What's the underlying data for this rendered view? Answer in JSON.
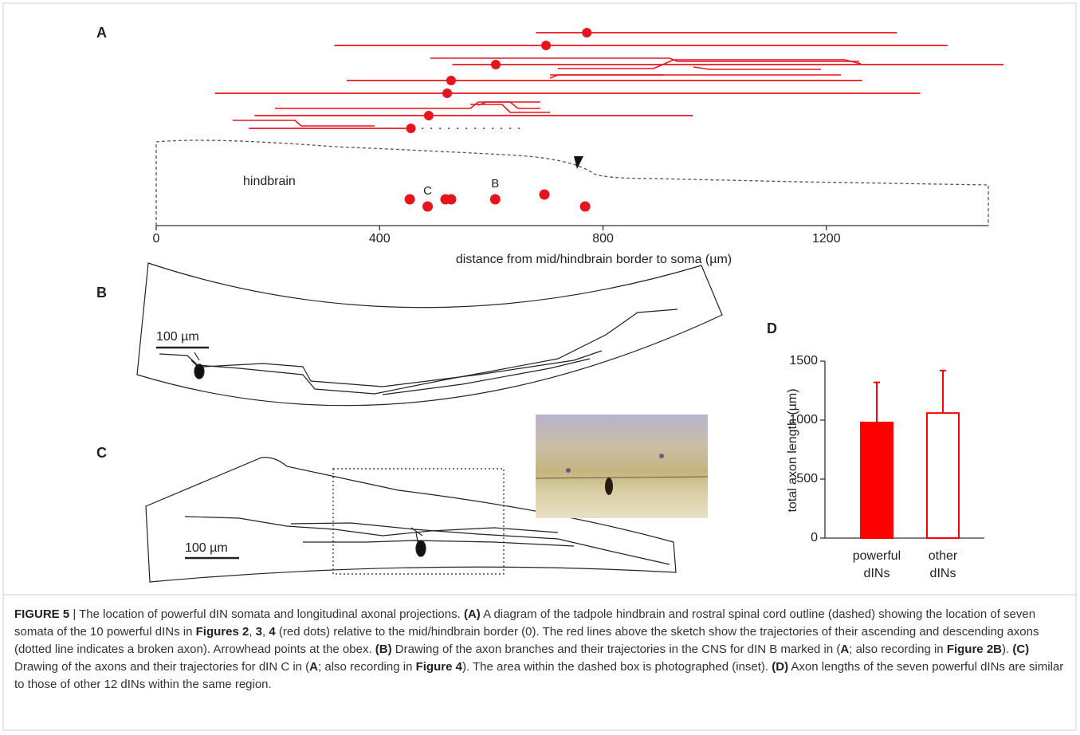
{
  "panels": {
    "A": {
      "label": "A",
      "region_label": "hindbrain",
      "x_label": "distance from mid/hindbrain border to soma (µm)",
      "xlim": [
        0,
        1490
      ],
      "xticks": [
        0,
        400,
        800,
        1200
      ],
      "somata": {
        "x": [
          454,
          486,
          518,
          528,
          607,
          695,
          768
        ],
        "labels": [
          null,
          "C",
          null,
          null,
          "B",
          null,
          null
        ]
      },
      "axons": [
        {
          "soma": 771,
          "start": 680,
          "end": 1326
        },
        {
          "soma": 698,
          "start": 319,
          "end": 1417
        },
        {
          "soma": 608,
          "start": 530,
          "end": 1517
        },
        {
          "soma": 528,
          "start": 341,
          "end": 1264
        },
        {
          "soma": 521,
          "start": 105,
          "end": 1368
        },
        {
          "soma": 488,
          "start": 176,
          "end": 961
        },
        {
          "soma": 456,
          "start": 166,
          "end": 651,
          "broken_from": 444
        }
      ],
      "color": "#e8141c"
    },
    "B": {
      "label": "B",
      "scale_label": "100 µm"
    },
    "C": {
      "label": "C",
      "scale_label": "100 µm"
    },
    "D": {
      "label": "D",
      "type": "bar",
      "y_label": "total axon length (µm)",
      "categories": [
        [
          "powerful",
          "dINs"
        ],
        [
          "other",
          "dINs"
        ]
      ],
      "values": [
        980,
        1060
      ],
      "errors": [
        340,
        360
      ],
      "fills": [
        "#ff0000",
        "#ffffff"
      ],
      "color": "#ff0000",
      "ylim": [
        0,
        1500
      ],
      "yticks": [
        0,
        500,
        1000,
        1500
      ]
    }
  },
  "caption": {
    "figure_label": "FIGURE 5",
    "runs": [
      {
        "text": " | The location of powerful dIN somata and longitudinal axonal projections. ",
        "bold": false
      },
      {
        "text": "(A)",
        "bold": true
      },
      {
        "text": " A diagram of the tadpole hindbrain and rostral spinal cord outline (dashed) showing the location of seven somata of the 10 powerful dINs in ",
        "bold": false
      },
      {
        "text": "Figures 2",
        "bold": true
      },
      {
        "text": ", ",
        "bold": false
      },
      {
        "text": "3",
        "bold": true
      },
      {
        "text": ", ",
        "bold": false
      },
      {
        "text": "4",
        "bold": true
      },
      {
        "text": " (red dots) relative to the mid/hindbrain border (0). The red lines above the sketch show the trajectories of their ascending and descending axons (dotted line indicates a broken axon). Arrowhead points at the obex. ",
        "bold": false
      },
      {
        "text": "(B)",
        "bold": true
      },
      {
        "text": " Drawing of the axon branches and their trajectories in the CNS for dIN B marked in (",
        "bold": false
      },
      {
        "text": "A",
        "bold": true
      },
      {
        "text": "; also recording in ",
        "bold": false
      },
      {
        "text": "Figure 2B",
        "bold": true
      },
      {
        "text": "). ",
        "bold": false
      },
      {
        "text": "(C)",
        "bold": true
      },
      {
        "text": " Drawing of the axons and their trajectories for dIN C in (",
        "bold": false
      },
      {
        "text": "A",
        "bold": true
      },
      {
        "text": "; also recording in ",
        "bold": false
      },
      {
        "text": "Figure 4",
        "bold": true
      },
      {
        "text": "). The area within the dashed box is photographed (inset). ",
        "bold": false
      },
      {
        "text": "(D)",
        "bold": true
      },
      {
        "text": " Axon lengths of the seven powerful dINs are similar to those of other 12 dINs within the same region.",
        "bold": false
      }
    ]
  }
}
